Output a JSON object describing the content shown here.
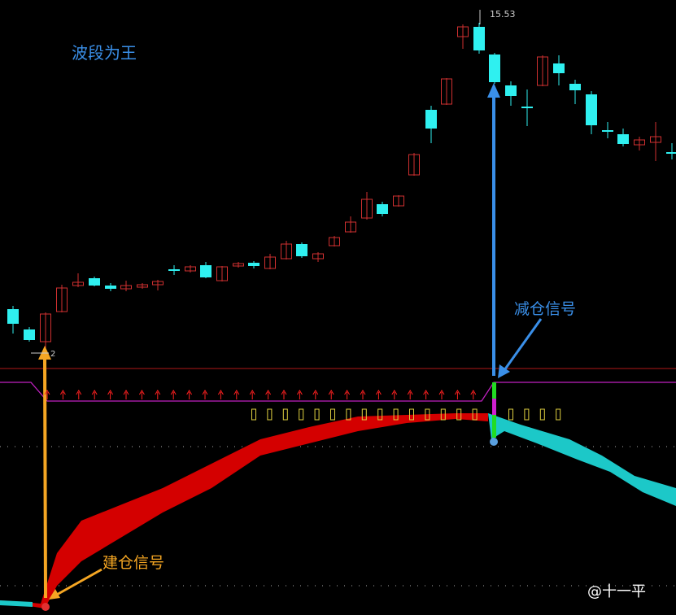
{
  "title": "波段为王",
  "annotations": {
    "high_label": "15.53",
    "low_label": "2",
    "reduce_signal": "减仓信号",
    "build_signal": "建仓信号"
  },
  "watermark": "@十一平"
}
